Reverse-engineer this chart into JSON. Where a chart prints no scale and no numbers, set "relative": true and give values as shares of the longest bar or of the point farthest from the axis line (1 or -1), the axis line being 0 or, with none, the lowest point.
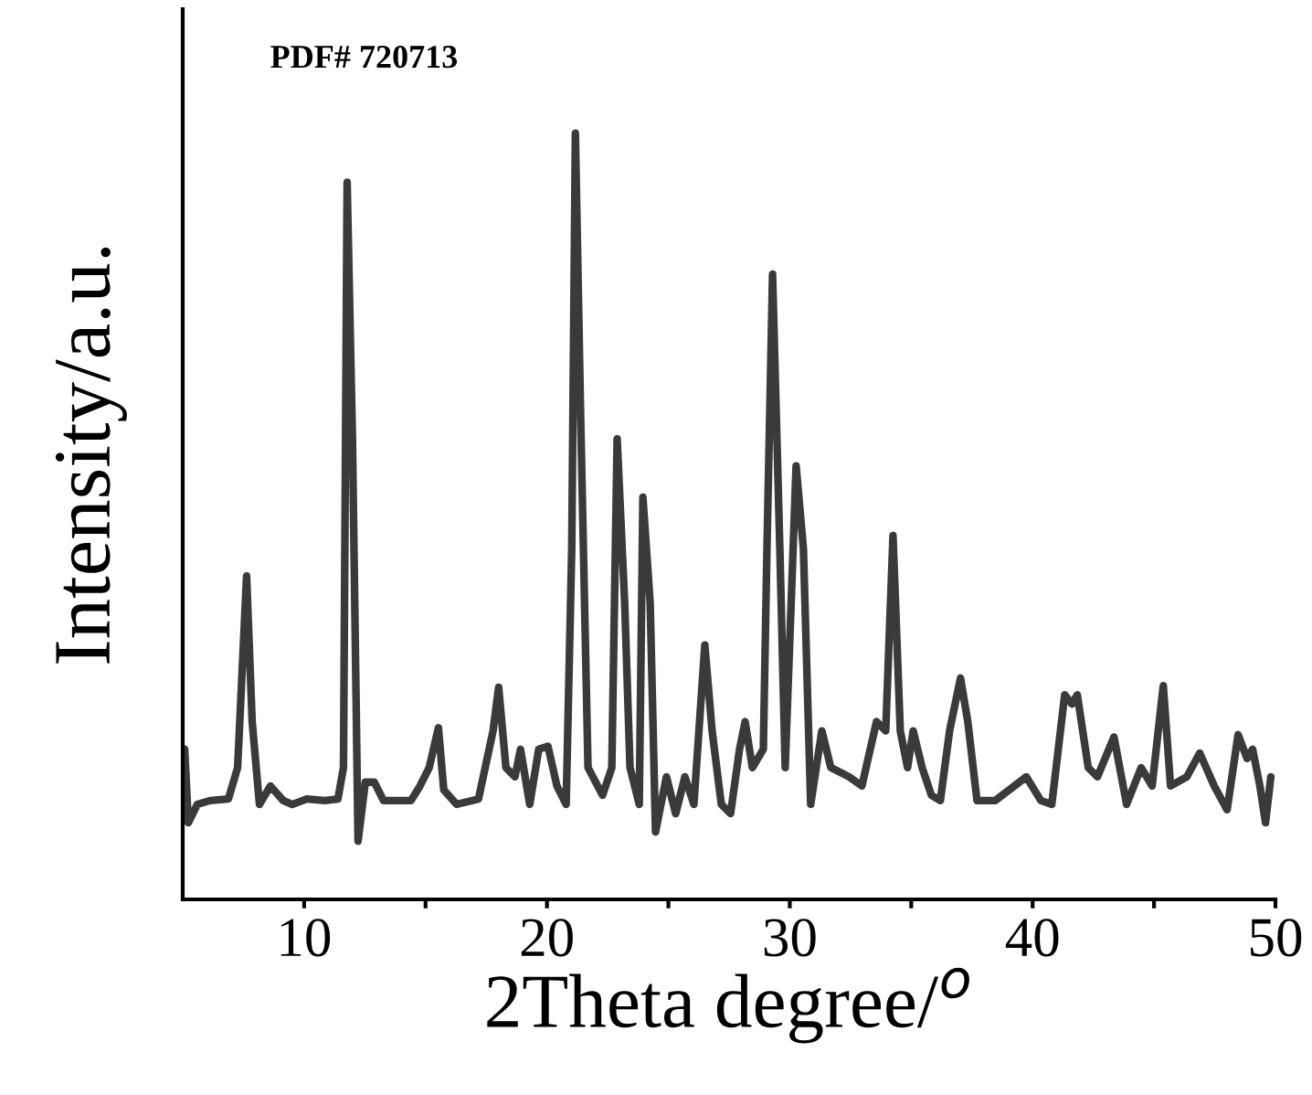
{
  "chart_data": {
    "type": "line",
    "relative": true,
    "xlabel": "2Theta degree/$^{o}$",
    "ylabel": "Intensity/a.u.",
    "annotations": [
      "PDF# 720713"
    ],
    "xlim": [
      5,
      50
    ],
    "xticks": [
      10,
      {
        "value": 15,
        "label": null
      },
      20,
      {
        "value": 25,
        "label": null
      },
      30,
      {
        "value": 35,
        "label": null
      },
      40,
      {
        "value": 45,
        "label": null
      },
      50
    ],
    "grid": false,
    "legend": false,
    "tick_labels": "x",
    "series": [
      {
        "color": "#3a3a3a",
        "x": [
          5.08,
          5.23,
          5.6,
          6.13,
          6.88,
          7.26,
          7.63,
          7.86,
          8.16,
          8.61,
          9.14,
          9.51,
          10.11,
          10.86,
          11.39,
          11.62,
          11.77,
          11.99,
          12.22,
          12.52,
          12.89,
          13.27,
          14.4,
          14.77,
          15.15,
          15.53,
          15.75,
          16.28,
          17.18,
          17.78,
          18.01,
          18.31,
          18.68,
          18.91,
          19.29,
          19.66,
          20.04,
          20.41,
          20.79,
          21.02,
          21.17,
          21.39,
          21.69,
          22.29,
          22.67,
          22.89,
          23.2,
          23.42,
          23.8,
          23.95,
          24.25,
          24.47,
          24.92,
          25.3,
          25.68,
          26.05,
          26.5,
          26.8,
          27.18,
          27.56,
          27.93,
          28.16,
          28.46,
          28.91,
          29.06,
          29.29,
          29.59,
          29.81,
          30.26,
          30.56,
          30.86,
          31.32,
          31.69,
          32.44,
          32.97,
          33.57,
          33.95,
          34.25,
          34.55,
          34.85,
          35.08,
          35.45,
          35.83,
          36.2,
          36.58,
          37.03,
          37.33,
          37.71,
          38.46,
          39.74,
          40.34,
          40.79,
          41.32,
          41.62,
          41.84,
          42.29,
          42.67,
          43.35,
          43.87,
          44.47,
          44.92,
          45.38,
          45.68,
          46.35,
          46.88,
          47.48,
          48.01,
          48.46,
          48.83,
          49.06,
          49.36,
          49.59,
          49.81
        ],
        "values": [
          0.196,
          0.1,
          0.124,
          0.129,
          0.131,
          0.172,
          0.422,
          0.232,
          0.124,
          0.148,
          0.129,
          0.124,
          0.131,
          0.129,
          0.131,
          0.172,
          0.936,
          0.601,
          0.076,
          0.153,
          0.153,
          0.129,
          0.129,
          0.148,
          0.172,
          0.224,
          0.143,
          0.124,
          0.131,
          0.22,
          0.277,
          0.172,
          0.16,
          0.196,
          0.124,
          0.196,
          0.2,
          0.148,
          0.124,
          0.458,
          1,
          0.625,
          0.172,
          0.136,
          0.172,
          0.601,
          0.387,
          0.172,
          0.124,
          0.525,
          0.387,
          0.088,
          0.16,
          0.112,
          0.16,
          0.124,
          0.332,
          0.22,
          0.124,
          0.112,
          0.196,
          0.232,
          0.172,
          0.196,
          0.458,
          0.816,
          0.458,
          0.172,
          0.566,
          0.458,
          0.124,
          0.22,
          0.172,
          0.16,
          0.148,
          0.232,
          0.22,
          0.475,
          0.22,
          0.172,
          0.22,
          0.172,
          0.136,
          0.129,
          0.22,
          0.289,
          0.232,
          0.129,
          0.129,
          0.16,
          0.129,
          0.124,
          0.267,
          0.255,
          0.267,
          0.172,
          0.16,
          0.212,
          0.124,
          0.172,
          0.148,
          0.279,
          0.148,
          0.16,
          0.191,
          0.148,
          0.117,
          0.215,
          0.184,
          0.196,
          0.148,
          0.1,
          0.16
        ]
      }
    ]
  }
}
